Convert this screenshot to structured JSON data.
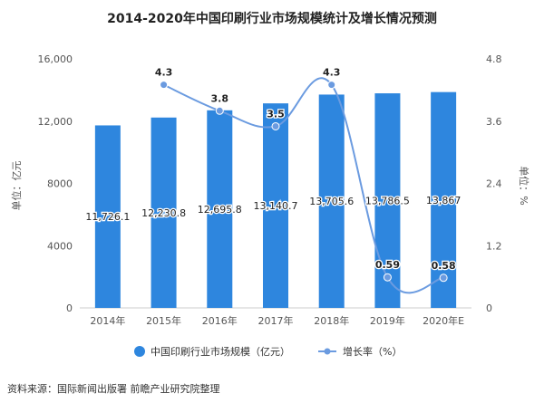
{
  "chart_data": {
    "type": "bar",
    "title": "2014-2020年中国印刷行业市场规模统计及增长情况预测",
    "categories": [
      "2014年",
      "2015年",
      "2016年",
      "2017年",
      "2018年",
      "2019年",
      "2020年E"
    ],
    "series": [
      {
        "name": "中国印刷行业市场规模（亿元）",
        "type": "bar",
        "axis": "left",
        "values": [
          11726.1,
          12230.8,
          12695.8,
          13140.7,
          13705.6,
          13786.5,
          13867
        ],
        "labels": [
          "11,726.1",
          "12,230.8",
          "12,695.8",
          "13,140.7",
          "13,705.6",
          "13,786.5",
          "13,867"
        ]
      },
      {
        "name": "增长率（%）",
        "type": "line",
        "axis": "right",
        "values": [
          null,
          4.3,
          3.8,
          3.5,
          4.3,
          0.59,
          0.58
        ],
        "labels": [
          "",
          "4.3",
          "3.8",
          "3.5",
          "4.3",
          "0.59",
          "0.58"
        ]
      }
    ],
    "ylabel": "单位：亿元",
    "y2label": "单位：%",
    "ylim": [
      0,
      16000
    ],
    "y2lim": [
      0,
      4.8
    ],
    "yticks": [
      0,
      4000,
      8000,
      12000,
      16000
    ],
    "ytick_labels": [
      "0",
      "4000",
      "8000",
      "12,000",
      "16,000"
    ],
    "y2ticks": [
      0,
      1.2,
      2.4,
      3.6,
      4.8
    ],
    "y2tick_labels": [
      "0",
      "1.2",
      "2.4",
      "3.6",
      "4.8"
    ],
    "legend": "bottom",
    "grid": false
  },
  "source": "资料来源：国际新闻出版署 前瞻产业研究院整理",
  "colors": {
    "bar": "#2e86de",
    "line": "#6b9be0",
    "axis_text": "#555555",
    "title": "#222222"
  }
}
